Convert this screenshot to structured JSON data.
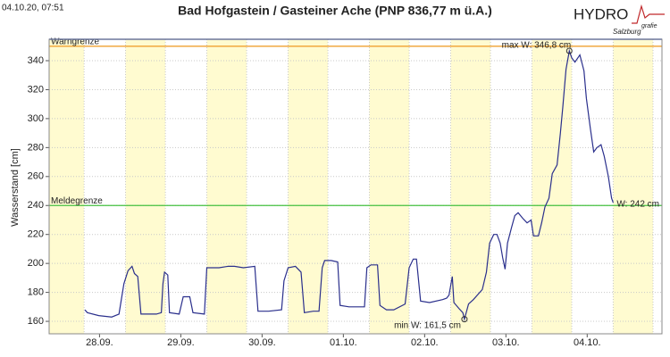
{
  "timestamp": "04.10.20, 07:51",
  "logo": {
    "main": "HYDRO",
    "sub": "grafie",
    "place": "Salzburg"
  },
  "chart_data": {
    "type": "line",
    "title": "Bad Hofgastein / Gasteiner Ache (PNP 836,77 m ü.A.)",
    "y_label": "Wasserstand [cm]",
    "xlim": [
      -0.12,
      7.42
    ],
    "xticks": [
      {
        "value": 0.5,
        "label": "28.09."
      },
      {
        "value": 1.5,
        "label": "29.09."
      },
      {
        "value": 2.5,
        "label": "30.09."
      },
      {
        "value": 3.5,
        "label": "01.10."
      },
      {
        "value": 4.5,
        "label": "02.10."
      },
      {
        "value": 5.5,
        "label": "03.10."
      },
      {
        "value": 6.5,
        "label": "04.10."
      }
    ],
    "ylim": [
      151.4,
      354.8
    ],
    "yticks": [
      160,
      180,
      200,
      220,
      240,
      260,
      280,
      300,
      320,
      340
    ],
    "grid": true,
    "thresholds": [
      {
        "label": "Warngrenze",
        "value": 350,
        "color": "#f0a030"
      },
      {
        "label": "Meldegrenze",
        "value": 240,
        "color": "#44c040"
      }
    ],
    "series": [
      {
        "name": "W",
        "color": "#2a2f8c",
        "x": [
          0.32,
          0.35,
          0.49,
          0.65,
          0.74,
          0.8,
          0.85,
          0.9,
          0.93,
          0.97,
          1.01,
          1.09,
          1.2,
          1.26,
          1.28,
          1.3,
          1.34,
          1.36,
          1.48,
          1.53,
          1.61,
          1.65,
          1.79,
          1.82,
          1.97,
          2.08,
          2.16,
          2.27,
          2.41,
          2.45,
          2.58,
          2.74,
          2.77,
          2.82,
          2.91,
          2.98,
          3.02,
          3.13,
          3.2,
          3.24,
          3.27,
          3.35,
          3.43,
          3.46,
          3.57,
          3.73,
          3.76,
          3.79,
          3.84,
          3.92,
          3.95,
          4.03,
          4.12,
          4.26,
          4.31,
          4.36,
          4.4,
          4.45,
          4.56,
          4.72,
          4.77,
          4.8,
          4.84,
          4.86,
          4.92,
          4.97,
          4.99,
          5.04,
          5.1,
          5.21,
          5.26,
          5.3,
          5.35,
          5.39,
          5.43,
          5.46,
          5.49,
          5.52,
          5.57,
          5.61,
          5.65,
          5.71,
          5.76,
          5.81,
          5.84,
          5.9,
          5.94,
          5.98,
          6.03,
          6.07,
          6.13,
          6.17,
          6.2,
          6.24,
          6.28,
          6.31,
          6.35,
          6.41,
          6.46,
          6.49,
          6.54,
          6.58,
          6.62,
          6.67,
          6.71,
          6.76,
          6.8,
          6.82
        ],
        "values": [
          168,
          166,
          164,
          163,
          165,
          186,
          195,
          198,
          193,
          191,
          165,
          165,
          165,
          166,
          186,
          194,
          192,
          166,
          165,
          177,
          177,
          166,
          165,
          197,
          197,
          198,
          198,
          197,
          198,
          167,
          167,
          168,
          188,
          197,
          198,
          194,
          166,
          167,
          167,
          197,
          202,
          202,
          201,
          171,
          170,
          170,
          170,
          197,
          199,
          199,
          171,
          168,
          168,
          172,
          197,
          203,
          203,
          174,
          173,
          175,
          176,
          178,
          191,
          173,
          169,
          166,
          161.5,
          172,
          175,
          182,
          194,
          214,
          220,
          220,
          214,
          204,
          196,
          214,
          225,
          233,
          235,
          231,
          228,
          230,
          219,
          219,
          228,
          239,
          245,
          262,
          268,
          290,
          308,
          334,
          346.8,
          342,
          339,
          344,
          333,
          314,
          293,
          277,
          280,
          282,
          274,
          260,
          245,
          242
        ]
      }
    ],
    "annotations": [
      {
        "text": "max W: 346,8 cm",
        "x": 6.28,
        "value": 346.8,
        "marker": true,
        "pos": "above-left"
      },
      {
        "text": "min W: 161,5 cm",
        "x": 4.99,
        "value": 161.5,
        "marker": true,
        "pos": "below-left"
      },
      {
        "text": "W: 242 cm",
        "x": 6.82,
        "value": 242,
        "marker": false,
        "pos": "right"
      }
    ]
  }
}
